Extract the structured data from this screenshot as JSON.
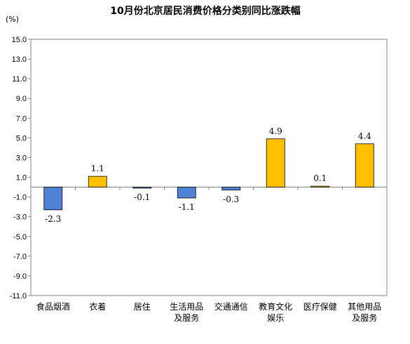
{
  "chart_data": {
    "type": "bar",
    "title": "10月份北京居民消费价格分类别同比涨跌幅",
    "unit_label": "(%)",
    "categories": [
      "食品烟酒",
      "衣着",
      "居住",
      "生活用品及服务",
      "交通通信",
      "教育文化娱乐",
      "医疗保健",
      "其他用品及服务"
    ],
    "category_lines": [
      [
        "食品烟酒"
      ],
      [
        "衣着"
      ],
      [
        "居住"
      ],
      [
        "生活用品",
        "及服务"
      ],
      [
        "交通通信"
      ],
      [
        "教育文化",
        "娱乐"
      ],
      [
        "医疗保健"
      ],
      [
        "其他用品",
        "及服务"
      ]
    ],
    "values": [
      -2.3,
      1.1,
      -0.1,
      -1.1,
      -0.3,
      4.9,
      0.1,
      4.4
    ],
    "data_labels": [
      "-2.3",
      "1.1",
      "-0.1",
      "-1.1",
      "-0.3",
      "4.9",
      "0.1",
      "4.4"
    ],
    "yticks": [
      "15.0",
      "13.0",
      "11.0",
      "9.0",
      "7.0",
      "5.0",
      "3.0",
      "1.0",
      "-1.0",
      "-3.0",
      "-5.0",
      "-7.0",
      "-9.0",
      "-11.0"
    ],
    "ylim": [
      -11,
      15
    ],
    "grid": false,
    "legend": "none",
    "colors": {
      "positive": "#FFC000",
      "negative": "#4F81D7",
      "axis": "#868686",
      "border": "#000000"
    }
  }
}
